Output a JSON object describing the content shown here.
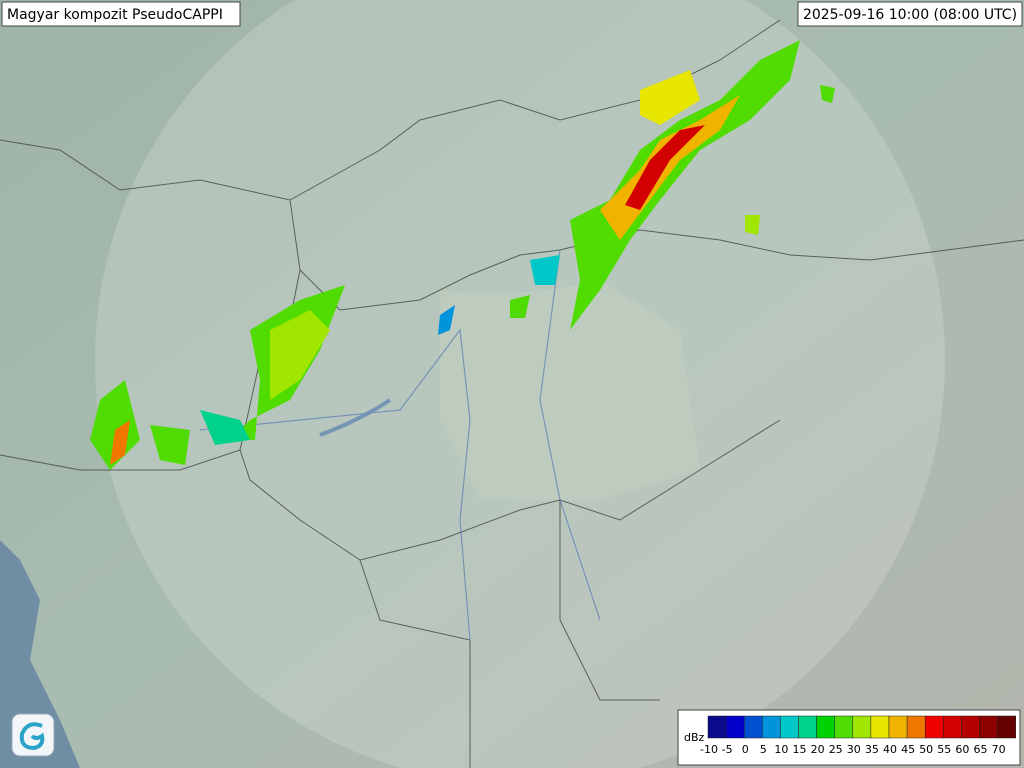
{
  "header": {
    "title": "Magyar kompozit  PseudoCAPPI",
    "timestamp": "2025-09-16 10:00 (08:00 UTC)"
  },
  "legend": {
    "unit": "dBz",
    "items": [
      {
        "value": -10,
        "color": "#0a0a8c"
      },
      {
        "value": -5,
        "color": "#0000c8"
      },
      {
        "value": 0,
        "color": "#0050d2"
      },
      {
        "value": 5,
        "color": "#0094dc"
      },
      {
        "value": 10,
        "color": "#00c8c8"
      },
      {
        "value": 15,
        "color": "#00d28c"
      },
      {
        "value": 20,
        "color": "#00d200"
      },
      {
        "value": 25,
        "color": "#50dc00"
      },
      {
        "value": 30,
        "color": "#a0e600"
      },
      {
        "value": 35,
        "color": "#e6e600"
      },
      {
        "value": 40,
        "color": "#f0b400"
      },
      {
        "value": 45,
        "color": "#f07800"
      },
      {
        "value": 50,
        "color": "#f00000"
      },
      {
        "value": 55,
        "color": "#d20000"
      },
      {
        "value": 60,
        "color": "#b40000"
      },
      {
        "value": 65,
        "color": "#8c0000"
      },
      {
        "value": 70,
        "color": "#640000"
      }
    ]
  }
}
